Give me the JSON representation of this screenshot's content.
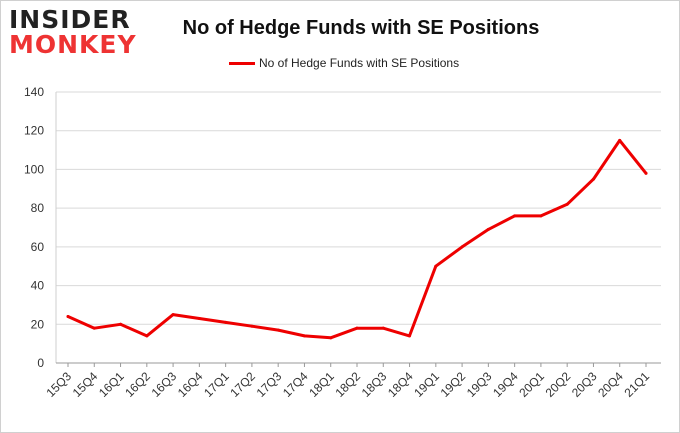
{
  "logo": {
    "line1": "INSIDER",
    "line2": "MONKEY"
  },
  "chart_data": {
    "type": "line",
    "title": "No of Hedge Funds with SE Positions",
    "categories": [
      "15Q3",
      "15Q4",
      "16Q1",
      "16Q2",
      "16Q3",
      "16Q4",
      "17Q1",
      "17Q2",
      "17Q3",
      "17Q4",
      "18Q1",
      "18Q2",
      "18Q3",
      "18Q4",
      "19Q1",
      "19Q2",
      "19Q3",
      "19Q4",
      "20Q1",
      "20Q2",
      "20Q3",
      "20Q4",
      "21Q1"
    ],
    "series": [
      {
        "name": "No of Hedge Funds with SE Positions",
        "color": "#ee0000",
        "values": [
          24,
          18,
          20,
          14,
          25,
          23,
          21,
          19,
          17,
          14,
          13,
          18,
          18,
          14,
          50,
          60,
          69,
          76,
          76,
          82,
          95,
          115,
          98
        ]
      }
    ],
    "ylim": [
      0,
      140
    ],
    "yticks": [
      0,
      20,
      40,
      60,
      80,
      100,
      120,
      140
    ],
    "grid": true,
    "legend": "top-center"
  }
}
